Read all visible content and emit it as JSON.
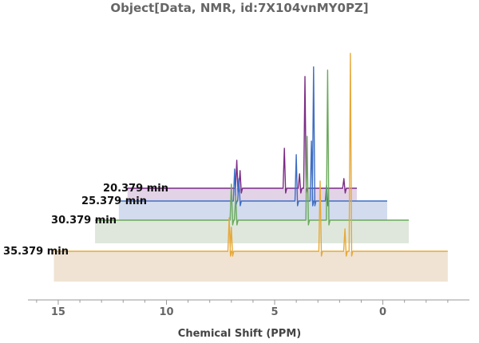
{
  "chart_data": {
    "type": "line",
    "title": "Object[Data, NMR, id:7X104vnMY0PZ]",
    "xlabel": "Chemical Shift  (PPM)",
    "ylabel": "",
    "x_reversed": true,
    "xlim": [
      16.4,
      -4.0
    ],
    "xticks": [
      15,
      10,
      5,
      0
    ],
    "grid": false,
    "legend": "none",
    "series": [
      {
        "name": "20.379 min",
        "color": "#7b2c86",
        "fill": "#e3d3e6",
        "x_range": [
          11.8,
          1.2
        ],
        "peaks": [
          {
            "x": 6.75,
            "h": 35
          },
          {
            "x": 6.6,
            "h": 22
          },
          {
            "x": 4.55,
            "h": 50
          },
          {
            "x": 3.85,
            "h": 18
          },
          {
            "x": 3.6,
            "h": 140
          },
          {
            "x": 1.8,
            "h": 12
          }
        ]
      },
      {
        "name": "25.379 min",
        "color": "#3f6fc4",
        "fill": "#d2dcee",
        "x_range": [
          12.2,
          -0.2
        ],
        "peaks": [
          {
            "x": 6.85,
            "h": 40
          },
          {
            "x": 6.65,
            "h": 28
          },
          {
            "x": 4.0,
            "h": 58
          },
          {
            "x": 3.3,
            "h": 75
          },
          {
            "x": 3.2,
            "h": 168
          },
          {
            "x": 2.6,
            "h": 20
          }
        ]
      },
      {
        "name": "30.379 min",
        "color": "#6aaa5a",
        "fill": "#dfe7dd",
        "x_range": [
          13.3,
          -1.2
        ],
        "peaks": [
          {
            "x": 7.0,
            "h": 45
          },
          {
            "x": 6.8,
            "h": 30
          },
          {
            "x": 3.5,
            "h": 105
          },
          {
            "x": 2.55,
            "h": 188
          }
        ]
      },
      {
        "name": "35.379 min",
        "color": "#e6a93a",
        "fill": "#f0e3d3",
        "x_range": [
          15.2,
          -3.0
        ],
        "peaks": [
          {
            "x": 7.1,
            "h": 42
          },
          {
            "x": 7.0,
            "h": 30
          },
          {
            "x": 2.9,
            "h": 88
          },
          {
            "x": 1.75,
            "h": 28
          },
          {
            "x": 1.5,
            "h": 248
          }
        ]
      }
    ]
  }
}
